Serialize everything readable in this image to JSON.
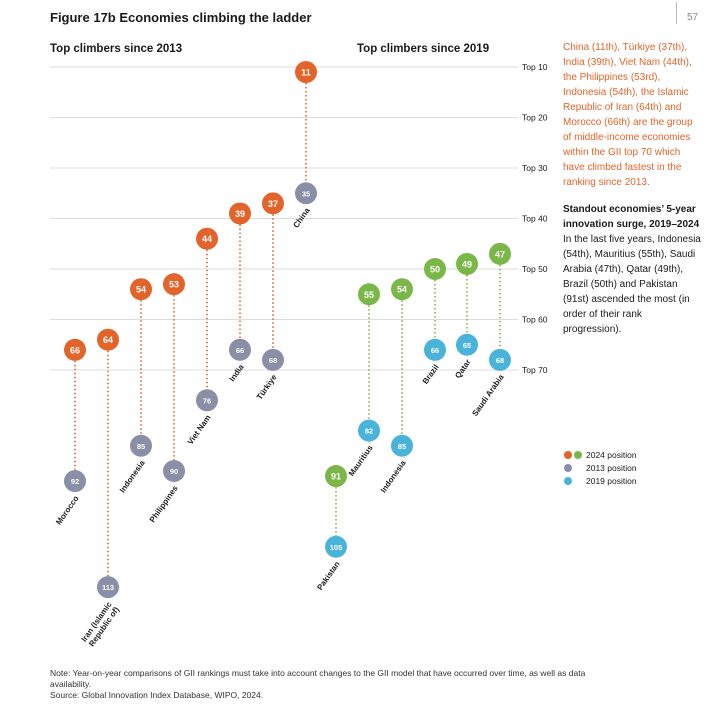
{
  "header": {
    "title": "Figure 17b Economies climbing the ladder",
    "page_number": "57"
  },
  "colors": {
    "pos2024_orange": "#e2642a",
    "pos2024_green": "#7ab648",
    "pos2013": "#8a8fa8",
    "pos2019": "#4ab3d9"
  },
  "side_panel": {
    "intro": "China (11th), Türkiye (37th), India (39th), Viet Nam (44th), the Philippines (53rd), Indonesia (54th), the Islamic Republic of Iran (64th) and Morocco (66th) are the group of middle-income economies within the GII top 70 which have climbed fastest in the ranking since 2013.",
    "heading": "Standout economies’ 5-year innovation surge, 2019–2024",
    "body": "In the last five years, Indonesia (54th), Mauritius (55th), Saudi Arabia (47th), Qatar (49th), Brazil (50th) and Pakistan (91st) ascended the most (in order of their rank progression)."
  },
  "legend": {
    "items": [
      {
        "label": "2024 position",
        "icon": "orange-green-dots"
      },
      {
        "label": "2013 position",
        "icon": "grey-dot"
      },
      {
        "label": "2019 position",
        "icon": "blue-dot"
      }
    ]
  },
  "footnote": {
    "note": "Note: Year-on-year comparisons of GII rankings must take into account changes to the GII model that have occurred over time, as well as data availability.",
    "source": "Source: Global Innovation Index Database, WIPO, 2024."
  },
  "chart_data": [
    {
      "type": "scatter",
      "title": "Top climbers since 2013",
      "y_axis": "GII rank (reversed)",
      "y_ticks": [
        "Top 10",
        "Top 20",
        "Top 30",
        "Top 40",
        "Top 50",
        "Top 60",
        "Top 70"
      ],
      "legend": "right",
      "series_labels": [
        "2024 position",
        "2013 position"
      ],
      "points": [
        {
          "country": "Morocco",
          "rank_2024": 66,
          "rank_2013": 92
        },
        {
          "country": "Iran (Islamic Republic of)",
          "rank_2024": 64,
          "rank_2013": 113
        },
        {
          "country": "Indonesia",
          "rank_2024": 54,
          "rank_2013": 85
        },
        {
          "country": "Philippines",
          "rank_2024": 53,
          "rank_2013": 90
        },
        {
          "country": "Viet Nam",
          "rank_2024": 44,
          "rank_2013": 76
        },
        {
          "country": "India",
          "rank_2024": 39,
          "rank_2013": 66
        },
        {
          "country": "Türkiye",
          "rank_2024": 37,
          "rank_2013": 68
        },
        {
          "country": "China",
          "rank_2024": 11,
          "rank_2013": 35
        }
      ]
    },
    {
      "type": "scatter",
      "title": "Top climbers since 2019",
      "y_axis": "GII rank (reversed)",
      "y_ticks": [
        "Top 10",
        "Top 20",
        "Top 30",
        "Top 40",
        "Top 50",
        "Top 60",
        "Top 70"
      ],
      "series_labels": [
        "2024 position",
        "2019 position"
      ],
      "points": [
        {
          "country": "Pakistan",
          "rank_2024": 91,
          "rank_2019": 105
        },
        {
          "country": "Mauritius",
          "rank_2024": 55,
          "rank_2019": 82
        },
        {
          "country": "Indonesia",
          "rank_2024": 54,
          "rank_2019": 85
        },
        {
          "country": "Brazil",
          "rank_2024": 50,
          "rank_2019": 66
        },
        {
          "country": "Qatar",
          "rank_2024": 49,
          "rank_2019": 65
        },
        {
          "country": "Saudi Arabia",
          "rank_2024": 47,
          "rank_2019": 68
        }
      ]
    }
  ]
}
